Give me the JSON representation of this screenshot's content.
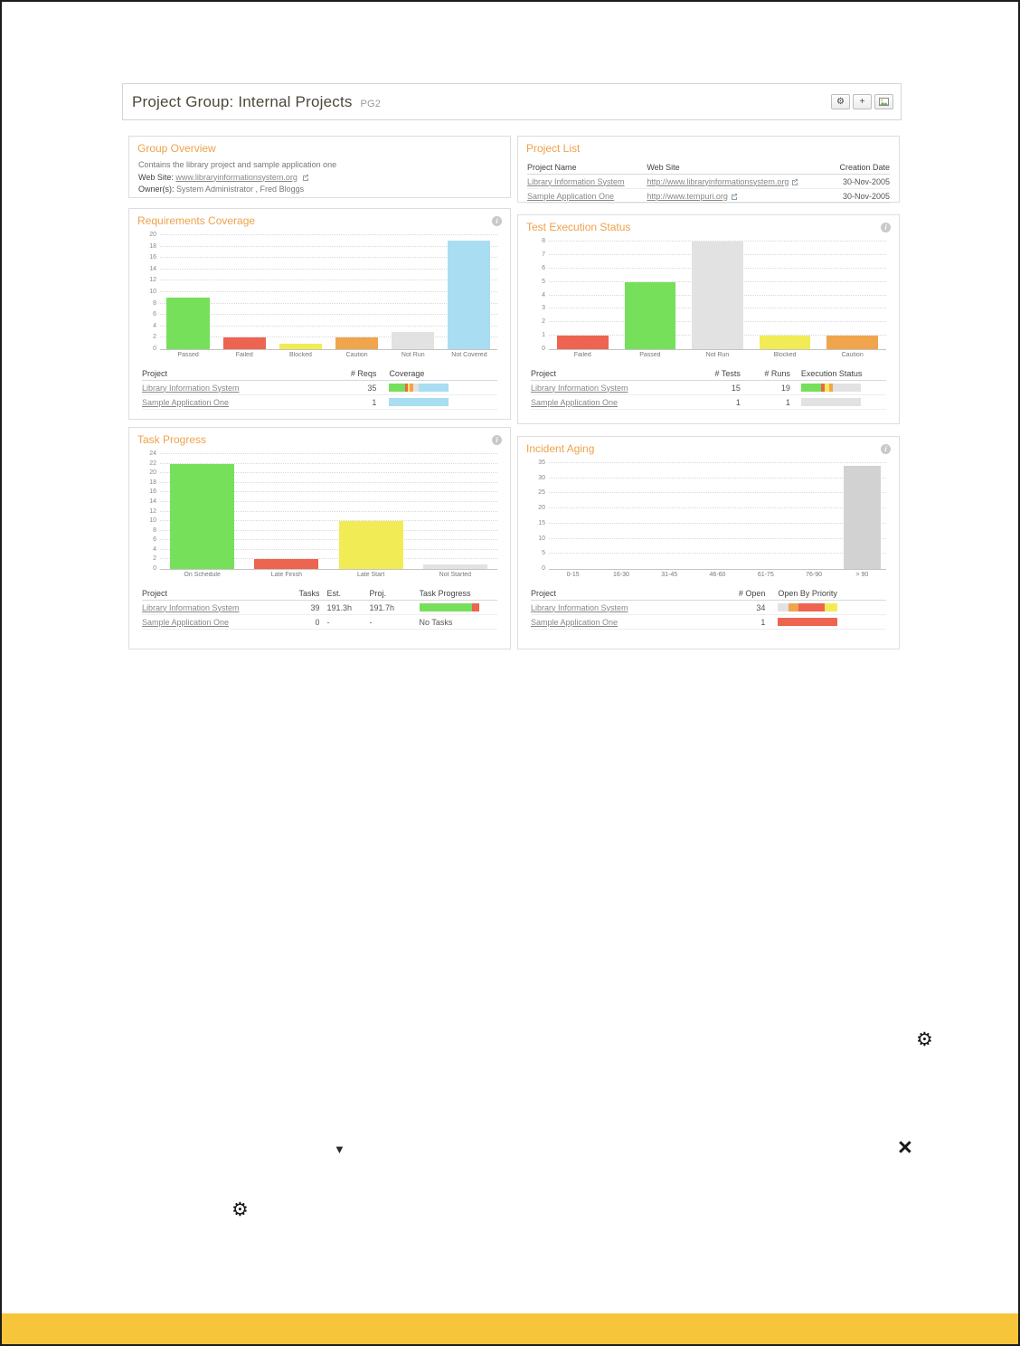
{
  "palette": {
    "green": "#76e05b",
    "red": "#ed6450",
    "yellow": "#f1ec55",
    "orange": "#f0a44c",
    "gray": "#e2e2e2",
    "gray2": "#d2d2d2",
    "blue": "#a9ddf2"
  },
  "icons": {
    "gear": "⚙",
    "plus": "+",
    "dropdown_arrow": "▼",
    "close": "×",
    "info": "i"
  },
  "header": {
    "title": "Project Group: Internal Projects",
    "code": "PG2"
  },
  "group_overview": {
    "title": "Group Overview",
    "description": "Contains the library project and sample application one",
    "website_label": "Web Site:",
    "website": "www.libraryinformationsystem.org",
    "owners_label": "Owner(s):",
    "owners": "System Administrator , Fred Bloggs"
  },
  "project_list": {
    "title": "Project List",
    "table": {
      "headers": [
        "Project Name",
        "Web Site",
        "Creation Date"
      ],
      "rows": [
        [
          {
            "link": "Library Information System"
          },
          {
            "link": "http://www.libraryinformationsystem.org",
            "ext": true
          },
          {
            "text": "30-Nov-2005"
          }
        ],
        [
          {
            "link": "Sample Application One"
          },
          {
            "link": "http://www.tempuri.org",
            "ext": true
          },
          {
            "text": "30-Nov-2005"
          }
        ]
      ]
    }
  },
  "requirements_coverage": {
    "title": "Requirements Coverage",
    "table": {
      "headers": [
        "Project",
        "# Reqs",
        "Coverage"
      ],
      "rows": [
        [
          {
            "link": "Library Information System"
          },
          {
            "text": "35"
          },
          {
            "bar": [
              [
                "green",
                26
              ],
              [
                "red",
                6
              ],
              [
                "yellow",
                3
              ],
              [
                "orange",
                6
              ],
              [
                "gray",
                8
              ],
              [
                "blue",
                51
              ]
            ]
          }
        ],
        [
          {
            "link": "Sample Application One"
          },
          {
            "text": "1"
          },
          {
            "bar": [
              [
                "blue",
                100
              ]
            ]
          }
        ]
      ]
    }
  },
  "test_execution": {
    "title": "Test Execution Status",
    "table": {
      "headers": [
        "Project",
        "# Tests",
        "# Runs",
        "Execution Status"
      ],
      "rows": [
        [
          {
            "link": "Library Information System"
          },
          {
            "text": "15"
          },
          {
            "text": "19"
          },
          {
            "bar": [
              [
                "green",
                33
              ],
              [
                "red",
                7
              ],
              [
                "yellow",
                7
              ],
              [
                "orange",
                7
              ],
              [
                "gray",
                46
              ]
            ]
          }
        ],
        [
          {
            "link": "Sample Application One"
          },
          {
            "text": "1"
          },
          {
            "text": "1"
          },
          {
            "bar": [
              [
                "gray",
                100
              ]
            ]
          }
        ]
      ]
    }
  },
  "task_progress": {
    "title": "Task Progress",
    "table": {
      "headers": [
        "Project",
        "Tasks",
        "Est.",
        "Proj.",
        "Task Progress"
      ],
      "rows": [
        [
          {
            "link": "Library Information System"
          },
          {
            "text": "39"
          },
          {
            "text": "191.3h"
          },
          {
            "text": "191.7h"
          },
          {
            "bar": [
              [
                "green",
                88
              ],
              [
                "red",
                12
              ]
            ]
          }
        ],
        [
          {
            "link": "Sample Application One"
          },
          {
            "text": "0"
          },
          {
            "text": "-"
          },
          {
            "text": "-"
          },
          {
            "text": "No Tasks"
          }
        ]
      ]
    }
  },
  "incident_aging": {
    "title": "Incident Aging",
    "table": {
      "headers": [
        "Project",
        "# Open",
        "Open By Priority"
      ],
      "rows": [
        [
          {
            "link": "Library Information System"
          },
          {
            "text": "34"
          },
          {
            "bar": [
              [
                "gray",
                18
              ],
              [
                "orange",
                16
              ],
              [
                "red",
                44
              ],
              [
                "yellow",
                22
              ]
            ]
          }
        ],
        [
          {
            "link": "Sample Application One"
          },
          {
            "text": "1"
          },
          {
            "bar": [
              [
                "red",
                100
              ]
            ]
          }
        ]
      ]
    }
  },
  "chart_data": [
    {
      "type": "bar",
      "title": "Requirements Coverage",
      "ymax": 20,
      "ystep": 2,
      "categories": [
        "Passed",
        "Failed",
        "Blocked",
        "Caution",
        "Not Run",
        "Not Covered"
      ],
      "values": [
        9,
        2,
        1,
        2,
        3,
        19
      ],
      "colors": [
        "green",
        "red",
        "yellow",
        "orange",
        "gray",
        "blue"
      ],
      "ylim": [
        0,
        20
      ],
      "grid": "dotted-horizontal",
      "legend": "none"
    },
    {
      "type": "bar",
      "title": "Test Execution Status",
      "ymax": 8,
      "ystep": 1,
      "categories": [
        "Failed",
        "Passed",
        "Not Run",
        "Blocked",
        "Caution"
      ],
      "values": [
        1,
        5,
        8,
        1,
        1
      ],
      "colors": [
        "red",
        "green",
        "gray",
        "yellow",
        "orange"
      ],
      "ylim": [
        0,
        8
      ],
      "grid": "dotted-horizontal",
      "legend": "none"
    },
    {
      "type": "bar",
      "title": "Task Progress",
      "ymax": 24,
      "ystep": 2,
      "categories": [
        "On Schedule",
        "Late Finish",
        "Late Start",
        "Not Started"
      ],
      "values": [
        22,
        2,
        10,
        1
      ],
      "colors": [
        "green",
        "red",
        "yellow",
        "gray"
      ],
      "ylim": [
        0,
        24
      ],
      "grid": "dotted-horizontal",
      "legend": "none"
    },
    {
      "type": "bar",
      "title": "Incident Aging",
      "ymax": 35,
      "ystep": 5,
      "categories": [
        "0-15",
        "16-30",
        "31-45",
        "46-60",
        "61-75",
        "76-90",
        "> 90"
      ],
      "values": [
        0,
        0,
        0,
        0,
        0,
        0,
        34
      ],
      "colors": [
        "gray2",
        "gray2",
        "gray2",
        "gray2",
        "gray2",
        "gray2",
        "gray2"
      ],
      "ylim": [
        0,
        35
      ],
      "grid": "dotted-horizontal",
      "legend": "none"
    }
  ]
}
